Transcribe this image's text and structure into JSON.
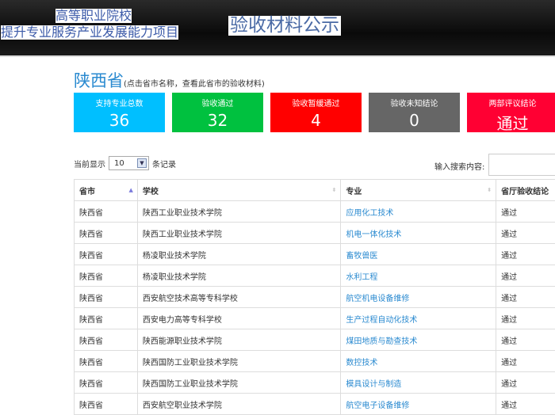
{
  "header": {
    "line1": "高等职业院校",
    "line2": "提升专业服务产业发展能力项目",
    "title": "验收材料公示"
  },
  "page": {
    "province": "陕西省",
    "hint": "(点击省市名称，查看此省市的验收材料)"
  },
  "cards": [
    {
      "label": "支持专业总数",
      "value": "36",
      "color": "#00bfff"
    },
    {
      "label": "验收通过",
      "value": "32",
      "color": "#00c13f"
    },
    {
      "label": "验收暂缓通过",
      "value": "4",
      "color": "#ff0000"
    },
    {
      "label": "验收未知结论",
      "value": "0",
      "color": "#666666"
    },
    {
      "label": "两部评议结论",
      "value": "通过",
      "color": "#ff0033"
    }
  ],
  "length": {
    "prefix": "当前显示",
    "value": "10",
    "suffix": "条记录"
  },
  "search": {
    "label": "输入搜索内容:",
    "value": ""
  },
  "table": {
    "headers": [
      "省市",
      "学校",
      "专业",
      "省厅验收结论"
    ],
    "rows": [
      [
        "陕西省",
        "陕西工业职业技术学院",
        "应用化工技术",
        "通过"
      ],
      [
        "陕西省",
        "陕西工业职业技术学院",
        "机电一体化技术",
        "通过"
      ],
      [
        "陕西省",
        "杨凌职业技术学院",
        "畜牧兽医",
        "通过"
      ],
      [
        "陕西省",
        "杨凌职业技术学院",
        "水利工程",
        "通过"
      ],
      [
        "陕西省",
        "西安航空技术高等专科学校",
        "航空机电设备维修",
        "通过"
      ],
      [
        "陕西省",
        "西安电力高等专科学校",
        "生产过程自动化技术",
        "通过"
      ],
      [
        "陕西省",
        "陕西能源职业技术学院",
        "煤田地质与勘查技术",
        "通过"
      ],
      [
        "陕西省",
        "陕西国防工业职业技术学院",
        "数控技术",
        "通过"
      ],
      [
        "陕西省",
        "陕西国防工业职业技术学院",
        "模具设计与制造",
        "通过"
      ],
      [
        "陕西省",
        "西安航空职业技术学院",
        "航空电子设备维修",
        "通过"
      ]
    ]
  }
}
